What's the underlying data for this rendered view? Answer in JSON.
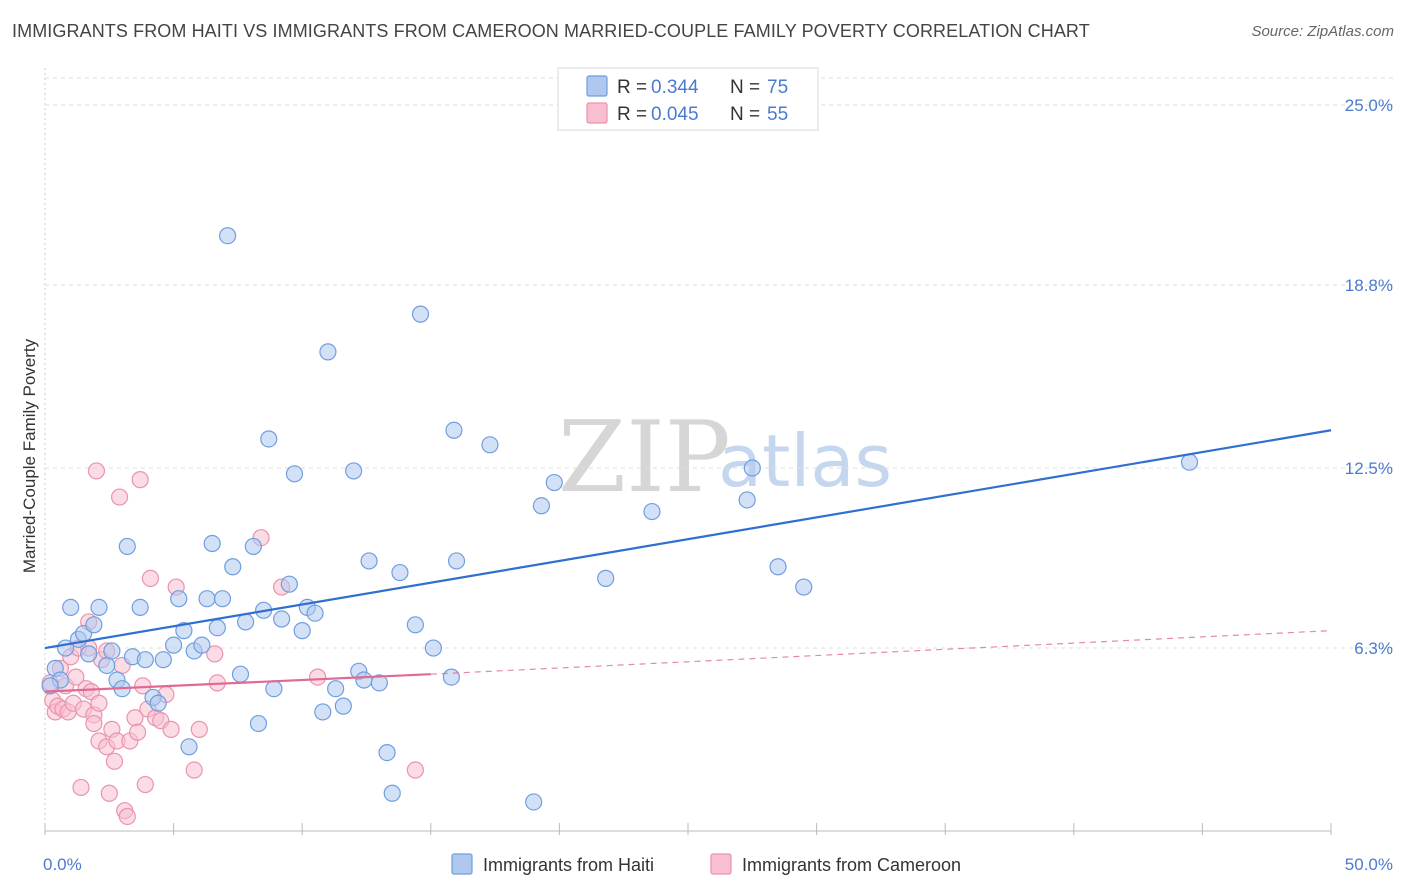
{
  "title": "IMMIGRANTS FROM HAITI VS IMMIGRANTS FROM CAMEROON MARRIED-COUPLE FAMILY POVERTY CORRELATION CHART",
  "source": "Source: ZipAtlas.com",
  "watermark": {
    "zip": "ZIP",
    "atlas": "atlas"
  },
  "chart_data": {
    "type": "scatter",
    "ylabel": "Married-Couple Family Poverty",
    "xlabel": "",
    "xlim": [
      0,
      50
    ],
    "ylim": [
      0,
      26
    ],
    "x_tick_labels": [
      {
        "value": 0,
        "label": "0.0%"
      },
      {
        "value": 50,
        "label": "50.0%"
      }
    ],
    "y_tick_labels": [
      {
        "value": 6.3,
        "label": "6.3%"
      },
      {
        "value": 12.5,
        "label": "12.5%"
      },
      {
        "value": 18.8,
        "label": "18.8%"
      },
      {
        "value": 25.0,
        "label": "25.0%"
      }
    ],
    "grid": true,
    "legend_position": "top-center",
    "colors": {
      "haiti_fill": "#aec8f0",
      "haiti_stroke": "#6f9ee0",
      "haiti_line": "#2f6fce",
      "cameroon_fill": "#f7bfd0",
      "cameroon_stroke": "#ec92ae",
      "cameroon_line": "#e06a93",
      "tick_text": "#4a7bd0"
    },
    "legend": [
      {
        "r_label": "R =",
        "r_value": "0.344",
        "n_label": "N =",
        "n_value": "75"
      },
      {
        "r_label": "R =",
        "r_value": "0.045",
        "n_label": "N =",
        "n_value": "55"
      }
    ],
    "series": [
      {
        "name": "Immigrants from Haiti",
        "trend": {
          "x": [
            0,
            50
          ],
          "y": [
            6.3,
            13.8
          ]
        },
        "points": [
          [
            0.4,
            5.6
          ],
          [
            0.6,
            5.2
          ],
          [
            0.8,
            6.3
          ],
          [
            1.0,
            7.7
          ],
          [
            1.3,
            6.6
          ],
          [
            1.5,
            6.8
          ],
          [
            1.7,
            6.1
          ],
          [
            1.9,
            7.1
          ],
          [
            2.1,
            7.7
          ],
          [
            2.4,
            5.7
          ],
          [
            2.6,
            6.2
          ],
          [
            2.8,
            5.2
          ],
          [
            3.0,
            4.9
          ],
          [
            3.2,
            9.8
          ],
          [
            3.4,
            6.0
          ],
          [
            3.7,
            7.7
          ],
          [
            3.9,
            5.9
          ],
          [
            4.2,
            4.6
          ],
          [
            4.4,
            4.4
          ],
          [
            4.6,
            5.9
          ],
          [
            5.0,
            6.4
          ],
          [
            5.2,
            8.0
          ],
          [
            5.4,
            6.9
          ],
          [
            5.6,
            2.9
          ],
          [
            5.8,
            6.2
          ],
          [
            6.1,
            6.4
          ],
          [
            6.3,
            8.0
          ],
          [
            6.5,
            9.9
          ],
          [
            6.7,
            7.0
          ],
          [
            6.9,
            8.0
          ],
          [
            7.1,
            20.5
          ],
          [
            7.3,
            9.1
          ],
          [
            7.6,
            5.4
          ],
          [
            7.8,
            7.2
          ],
          [
            8.1,
            9.8
          ],
          [
            8.3,
            3.7
          ],
          [
            8.5,
            7.6
          ],
          [
            8.7,
            13.5
          ],
          [
            8.9,
            4.9
          ],
          [
            9.2,
            7.3
          ],
          [
            9.5,
            8.5
          ],
          [
            9.7,
            12.3
          ],
          [
            10.0,
            6.9
          ],
          [
            10.2,
            7.7
          ],
          [
            10.5,
            7.5
          ],
          [
            10.8,
            4.1
          ],
          [
            11.0,
            16.5
          ],
          [
            11.3,
            4.9
          ],
          [
            11.6,
            4.3
          ],
          [
            12.0,
            12.4
          ],
          [
            12.2,
            5.5
          ],
          [
            12.4,
            5.2
          ],
          [
            12.6,
            9.3
          ],
          [
            13.0,
            5.1
          ],
          [
            13.3,
            2.7
          ],
          [
            13.5,
            1.3
          ],
          [
            13.8,
            8.9
          ],
          [
            14.4,
            7.1
          ],
          [
            14.6,
            17.8
          ],
          [
            15.1,
            6.3
          ],
          [
            15.8,
            5.3
          ],
          [
            15.9,
            13.8
          ],
          [
            16.0,
            9.3
          ],
          [
            17.3,
            13.3
          ],
          [
            19.0,
            1.0
          ],
          [
            19.3,
            11.2
          ],
          [
            19.8,
            12.0
          ],
          [
            21.8,
            8.7
          ],
          [
            23.6,
            11.0
          ],
          [
            27.3,
            11.4
          ],
          [
            27.5,
            12.5
          ],
          [
            28.5,
            9.1
          ],
          [
            29.5,
            8.4
          ],
          [
            44.5,
            12.7
          ],
          [
            0.2,
            5.0
          ]
        ]
      },
      {
        "name": "Immigrants from Cameroon",
        "trend": {
          "x": [
            0,
            15
          ],
          "y": [
            4.8,
            5.4
          ]
        },
        "trend_extension": {
          "x": [
            15,
            50
          ],
          "y": [
            5.4,
            6.9
          ]
        },
        "points": [
          [
            0.2,
            5.1
          ],
          [
            0.3,
            4.5
          ],
          [
            0.4,
            4.1
          ],
          [
            0.5,
            4.3
          ],
          [
            0.6,
            5.6
          ],
          [
            0.7,
            4.2
          ],
          [
            0.8,
            5.0
          ],
          [
            0.9,
            4.1
          ],
          [
            1.0,
            6.0
          ],
          [
            1.1,
            4.4
          ],
          [
            1.2,
            5.3
          ],
          [
            1.3,
            6.3
          ],
          [
            1.4,
            1.5
          ],
          [
            1.5,
            4.2
          ],
          [
            1.6,
            4.9
          ],
          [
            1.7,
            6.3
          ],
          [
            1.7,
            7.2
          ],
          [
            1.8,
            4.8
          ],
          [
            1.9,
            4.0
          ],
          [
            1.9,
            3.7
          ],
          [
            2.0,
            12.4
          ],
          [
            2.1,
            3.1
          ],
          [
            2.1,
            4.4
          ],
          [
            2.2,
            5.9
          ],
          [
            2.4,
            2.9
          ],
          [
            2.4,
            6.2
          ],
          [
            2.5,
            1.3
          ],
          [
            2.6,
            3.5
          ],
          [
            2.7,
            2.4
          ],
          [
            2.8,
            3.1
          ],
          [
            2.9,
            11.5
          ],
          [
            3.0,
            5.7
          ],
          [
            3.1,
            0.7
          ],
          [
            3.2,
            0.5
          ],
          [
            3.3,
            3.1
          ],
          [
            3.5,
            3.9
          ],
          [
            3.6,
            3.4
          ],
          [
            3.7,
            12.1
          ],
          [
            3.8,
            5.0
          ],
          [
            3.9,
            1.6
          ],
          [
            4.0,
            4.2
          ],
          [
            4.1,
            8.7
          ],
          [
            4.3,
            3.9
          ],
          [
            4.5,
            3.8
          ],
          [
            4.7,
            4.7
          ],
          [
            4.9,
            3.5
          ],
          [
            5.1,
            8.4
          ],
          [
            5.8,
            2.1
          ],
          [
            6.0,
            3.5
          ],
          [
            6.6,
            6.1
          ],
          [
            6.7,
            5.1
          ],
          [
            8.4,
            10.1
          ],
          [
            9.2,
            8.4
          ],
          [
            10.6,
            5.3
          ],
          [
            14.4,
            2.1
          ]
        ]
      }
    ]
  },
  "bottom_legend": [
    {
      "label": "Immigrants from Haiti"
    },
    {
      "label": "Immigrants from Cameroon"
    }
  ]
}
